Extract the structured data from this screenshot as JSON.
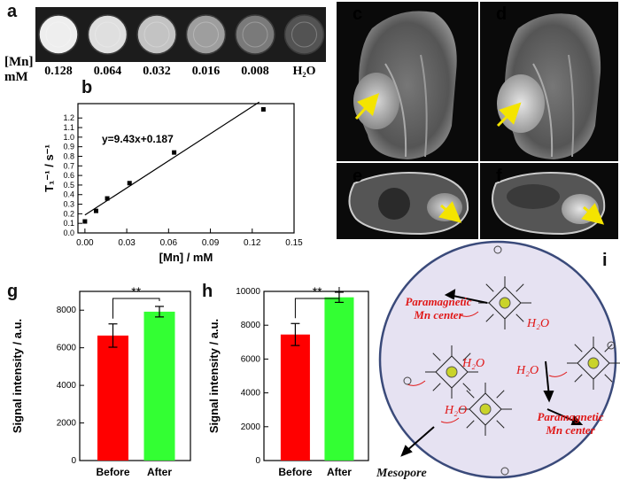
{
  "panels": {
    "a": {
      "letter": "a",
      "conc_label_line1": "[Mn]",
      "conc_label_line2": "mM",
      "samples": [
        {
          "label": "0.128",
          "brightness": 0.92
        },
        {
          "label": "0.064",
          "brightness": 0.85
        },
        {
          "label": "0.032",
          "brightness": 0.72
        },
        {
          "label": "0.016",
          "brightness": 0.55
        },
        {
          "label": "0.008",
          "brightness": 0.38
        },
        {
          "label": "H₂O",
          "brightness": 0.2
        }
      ]
    },
    "b": {
      "letter": "b",
      "equation": "y=9.43x+0.187"
    },
    "c": {
      "letter": "c"
    },
    "d": {
      "letter": "d"
    },
    "e": {
      "letter": "e"
    },
    "f": {
      "letter": "f"
    },
    "g": {
      "letter": "g"
    },
    "h": {
      "letter": "h"
    },
    "i": {
      "letter": "i",
      "labels": {
        "paramagnetic_1": "Paramagnetic",
        "mn_center_1": "Mn center",
        "paramagnetic_2": "Paramagnetic",
        "mn_center_2": "Mn center",
        "h2o": "H₂O",
        "mesopore": "Mesopore",
        "mn": "Mn"
      }
    }
  },
  "chart_data": [
    {
      "id": "b",
      "type": "scatter",
      "xlabel": "[Mn] / mM",
      "ylabel": "T₁⁻¹ / s⁻¹",
      "xlim": [
        -0.005,
        0.15
      ],
      "ylim": [
        0.0,
        1.35
      ],
      "xticks": [
        "0.00",
        "0.03",
        "0.06",
        "0.09",
        "0.12",
        "0.15"
      ],
      "yticks": [
        "0.0",
        "0.1",
        "0.2",
        "0.3",
        "0.4",
        "0.5",
        "0.6",
        "0.7",
        "0.8",
        "0.9",
        "1.0",
        "1.1",
        "1.2"
      ],
      "points": [
        {
          "x": 0.0,
          "y": 0.12
        },
        {
          "x": 0.008,
          "y": 0.23
        },
        {
          "x": 0.016,
          "y": 0.36
        },
        {
          "x": 0.032,
          "y": 0.52
        },
        {
          "x": 0.064,
          "y": 0.84
        },
        {
          "x": 0.128,
          "y": 1.29
        }
      ],
      "fit": {
        "slope": 9.43,
        "intercept": 0.187,
        "x_range": [
          0.0,
          0.125
        ]
      },
      "annotation": "y=9.43x+0.187"
    },
    {
      "id": "g",
      "type": "bar",
      "ylabel": "Signal intensity / a.u.",
      "ylim": [
        0,
        9000
      ],
      "yticks": [
        "0",
        "2000",
        "4000",
        "6000",
        "8000"
      ],
      "categories": [
        "Before",
        "After"
      ],
      "values": [
        6650,
        7920
      ],
      "errors": [
        620,
        280
      ],
      "colors": [
        "#ff0000",
        "#33ff33"
      ],
      "significance": "**"
    },
    {
      "id": "h",
      "type": "bar",
      "ylabel": "Signal intensity / a.u.",
      "ylim": [
        0,
        10000
      ],
      "yticks": [
        "0",
        "2000",
        "4000",
        "6000",
        "8000",
        "10000"
      ],
      "categories": [
        "Before",
        "After"
      ],
      "values": [
        7450,
        9650
      ],
      "errors": [
        650,
        300
      ],
      "colors": [
        "#ff0000",
        "#33ff33"
      ],
      "significance": "**"
    }
  ]
}
